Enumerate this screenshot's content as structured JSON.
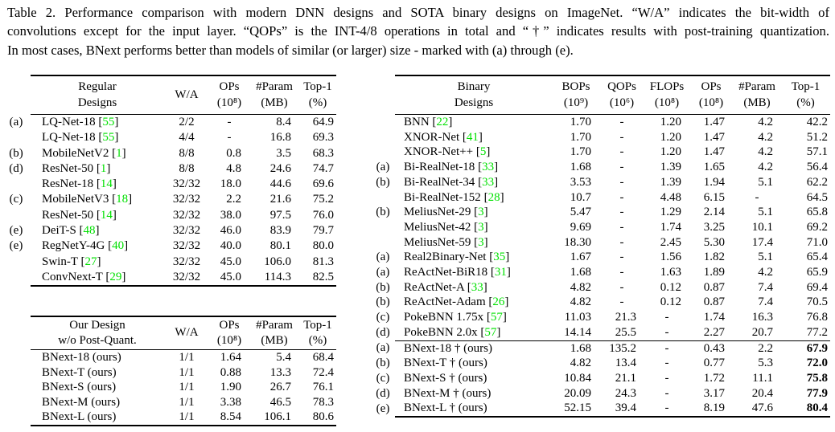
{
  "colors": {
    "citation_green": "#00e000",
    "text": "#000000",
    "background": "#ffffff"
  },
  "caption": {
    "lines": [
      "Table 2.  Performance comparison with modern DNN designs and SOTA binary designs on ImageNet.  “W/A” indicates the bit-width of",
      "convolutions except for the input layer.  “QOPs” is the INT-4/8 operations in total and “†” indicates results with post-training quantization.",
      "In most cases, BNext performs better than models of similar (or larger) size - marked with (a) through (e)."
    ]
  },
  "tables": [
    {
      "key": "regular",
      "header": [
        {
          "l1": "Regular",
          "l2": "Designs"
        },
        {
          "l1": "W/A",
          "l2": ""
        },
        {
          "l1": "OPs",
          "l2": "(10⁸)"
        },
        {
          "l1": "#Param",
          "l2": "(MB)"
        },
        {
          "l1": "Top-1",
          "l2": "(%)"
        }
      ],
      "rows": [
        {
          "tag": "(a)",
          "name": "LQ-Net-18",
          "cite": "55",
          "vals": [
            "2/2",
            "-",
            "8.4",
            "64.9"
          ]
        },
        {
          "tag": "",
          "name": "LQ-Net-18",
          "cite": "55",
          "vals": [
            "4/4",
            "-",
            "16.8",
            "69.3"
          ]
        },
        {
          "tag": "(b)",
          "name": "MobileNetV2",
          "cite": "1",
          "vals": [
            "8/8",
            "0.8",
            "3.5",
            "68.3"
          ]
        },
        {
          "tag": "(d)",
          "name": "ResNet-50",
          "cite": "1",
          "vals": [
            "8/8",
            "4.8",
            "24.6",
            "74.7"
          ]
        },
        {
          "tag": "",
          "name": "ResNet-18",
          "cite": "14",
          "vals": [
            "32/32",
            "18.0",
            "44.6",
            "69.6"
          ]
        },
        {
          "tag": "(c)",
          "name": "MobileNetV3",
          "cite": "18",
          "vals": [
            "32/32",
            "2.2",
            "21.6",
            "75.2"
          ]
        },
        {
          "tag": "",
          "name": "ResNet-50",
          "cite": "14",
          "vals": [
            "32/32",
            "38.0",
            "97.5",
            "76.0"
          ]
        },
        {
          "tag": "(e)",
          "name": "DeiT-S",
          "cite": "48",
          "vals": [
            "32/32",
            "46.0",
            "83.9",
            "79.7"
          ]
        },
        {
          "tag": "(e)",
          "name": "RegNetY-4G",
          "cite": "40",
          "vals": [
            "32/32",
            "40.0",
            "80.1",
            "80.0"
          ]
        },
        {
          "tag": "",
          "name": "Swin-T",
          "cite": "27",
          "vals": [
            "32/32",
            "45.0",
            "106.0",
            "81.3"
          ]
        },
        {
          "tag": "",
          "name": "ConvNext-T",
          "cite": "29",
          "vals": [
            "32/32",
            "45.0",
            "114.3",
            "82.5"
          ]
        }
      ]
    },
    {
      "key": "ours",
      "header": [
        {
          "l1": "Our Design",
          "l2": "w/o Post-Quant."
        },
        {
          "l1": "W/A",
          "l2": ""
        },
        {
          "l1": "OPs",
          "l2": "(10⁸)"
        },
        {
          "l1": "#Param",
          "l2": "(MB)"
        },
        {
          "l1": "Top-1",
          "l2": "(%)"
        }
      ],
      "rows": [
        {
          "tag": "",
          "name": "BNext-18 (ours)",
          "cite": null,
          "vals": [
            "1/1",
            "1.64",
            "5.4",
            "68.4"
          ]
        },
        {
          "tag": "",
          "name": "BNext-T (ours)",
          "cite": null,
          "vals": [
            "1/1",
            "0.88",
            "13.3",
            "72.4"
          ]
        },
        {
          "tag": "",
          "name": "BNext-S (ours)",
          "cite": null,
          "vals": [
            "1/1",
            "1.90",
            "26.7",
            "76.1"
          ]
        },
        {
          "tag": "",
          "name": "BNext-M (ours)",
          "cite": null,
          "vals": [
            "1/1",
            "3.38",
            "46.5",
            "78.3"
          ]
        },
        {
          "tag": "",
          "name": "BNext-L (ours)",
          "cite": null,
          "vals": [
            "1/1",
            "8.54",
            "106.1",
            "80.6"
          ]
        }
      ]
    },
    {
      "key": "binary",
      "header": [
        {
          "l1": "Binary",
          "l2": "Designs"
        },
        {
          "l1": "BOPs",
          "l2": "(10⁹)"
        },
        {
          "l1": "QOPs",
          "l2": "(10⁶)"
        },
        {
          "l1": "FLOPs",
          "l2": "(10⁸)"
        },
        {
          "l1": "OPs",
          "l2": "(10⁸)"
        },
        {
          "l1": "#Param",
          "l2": "(MB)"
        },
        {
          "l1": "Top-1",
          "l2": "(%)"
        }
      ],
      "rows": [
        {
          "tag": "",
          "name": "BNN",
          "cite": "22",
          "vals": [
            "1.70",
            "-",
            "1.20",
            "1.47",
            "4.2",
            "42.2"
          ]
        },
        {
          "tag": "",
          "name": "XNOR-Net",
          "cite": "41",
          "vals": [
            "1.70",
            "-",
            "1.20",
            "1.47",
            "4.2",
            "51.2"
          ]
        },
        {
          "tag": "",
          "name": "XNOR-Net++",
          "cite": "5",
          "vals": [
            "1.70",
            "-",
            "1.20",
            "1.47",
            "4.2",
            "57.1"
          ]
        },
        {
          "tag": "(a)",
          "name": "Bi-RealNet-18",
          "cite": "33",
          "vals": [
            "1.68",
            "-",
            "1.39",
            "1.65",
            "4.2",
            "56.4"
          ]
        },
        {
          "tag": "(b)",
          "name": "Bi-RealNet-34",
          "cite": "33",
          "vals": [
            "3.53",
            "-",
            "1.39",
            "1.94",
            "5.1",
            "62.2"
          ]
        },
        {
          "tag": "",
          "name": "Bi-RealNet-152",
          "cite": "28",
          "vals": [
            "10.7",
            "-",
            "4.48",
            "6.15",
            "-",
            "64.5"
          ]
        },
        {
          "tag": "(b)",
          "name": "MeliusNet-29",
          "cite": "3",
          "vals": [
            "5.47",
            "-",
            "1.29",
            "2.14",
            "5.1",
            "65.8"
          ]
        },
        {
          "tag": "",
          "name": "MeliusNet-42",
          "cite": "3",
          "vals": [
            "9.69",
            "-",
            "1.74",
            "3.25",
            "10.1",
            "69.2"
          ]
        },
        {
          "tag": "",
          "name": "MeliusNet-59",
          "cite": "3",
          "vals": [
            "18.30",
            "-",
            "2.45",
            "5.30",
            "17.4",
            "71.0"
          ]
        },
        {
          "tag": "(a)",
          "name": "Real2Binary-Net",
          "cite": "35",
          "vals": [
            "1.67",
            "-",
            "1.56",
            "1.82",
            "5.1",
            "65.4"
          ]
        },
        {
          "tag": "(a)",
          "name": "ReActNet-BiR18",
          "cite": "31",
          "vals": [
            "1.68",
            "-",
            "1.63",
            "1.89",
            "4.2",
            "65.9"
          ]
        },
        {
          "tag": "(b)",
          "name": "ReActNet-A",
          "cite": "33",
          "vals": [
            "4.82",
            "-",
            "0.12",
            "0.87",
            "7.4",
            "69.4"
          ]
        },
        {
          "tag": "(b)",
          "name": "ReActNet-Adam",
          "cite": "26",
          "vals": [
            "4.82",
            "-",
            "0.12",
            "0.87",
            "7.4",
            "70.5"
          ]
        },
        {
          "tag": "(c)",
          "name": "PokeBNN 1.75x",
          "cite": "57",
          "vals": [
            "11.03",
            "21.3",
            "-",
            "1.74",
            "16.3",
            "76.8"
          ]
        },
        {
          "tag": "(d)",
          "name": "PokeBNN 2.0x",
          "cite": "57",
          "vals": [
            "14.14",
            "25.5",
            "-",
            "2.27",
            "20.7",
            "77.2"
          ]
        },
        {
          "tag": "(a)",
          "name": "BNext-18 † (ours)",
          "cite": null,
          "rule_above": true,
          "bold_last": true,
          "vals": [
            "1.68",
            "135.2",
            "-",
            "0.43",
            "2.2",
            "67.9"
          ]
        },
        {
          "tag": "(b)",
          "name": "BNext-T † (ours)",
          "cite": null,
          "bold_last": true,
          "vals": [
            "4.82",
            "13.4",
            "-",
            "0.77",
            "5.3",
            "72.0"
          ]
        },
        {
          "tag": "(c)",
          "name": "BNext-S † (ours)",
          "cite": null,
          "bold_last": true,
          "vals": [
            "10.84",
            "21.1",
            "-",
            "1.72",
            "11.1",
            "75.8"
          ]
        },
        {
          "tag": "(d)",
          "name": "BNext-M † (ours)",
          "cite": null,
          "bold_last": true,
          "vals": [
            "20.09",
            "24.3",
            "-",
            "3.17",
            "20.4",
            "77.9"
          ]
        },
        {
          "tag": "(e)",
          "name": "BNext-L † (ours)",
          "cite": null,
          "bold_last": true,
          "vals": [
            "52.15",
            "39.4",
            "-",
            "8.19",
            "47.6",
            "80.4"
          ]
        }
      ]
    }
  ]
}
